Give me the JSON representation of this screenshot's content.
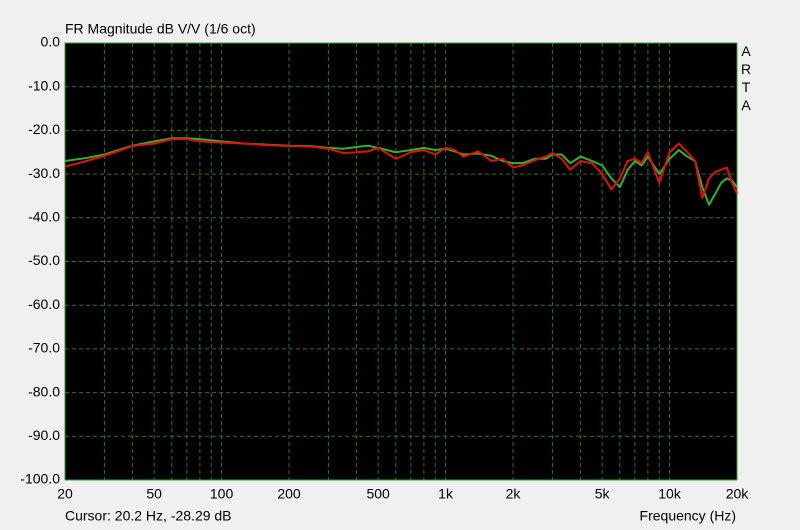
{
  "chart_data": {
    "type": "line",
    "title": "FR Magnitude dB V/V (1/6 oct)",
    "watermark": "ARTA",
    "cursor": "Cursor: 20.2 Hz, -28.29 dB",
    "x_label": "Frequency (Hz)",
    "x_log": true,
    "grid": true,
    "background": "#000000",
    "frame_color": "#3c9b3c",
    "grid_color": "#2f6f2f",
    "xlim": [
      20,
      20000
    ],
    "xticks": [
      20,
      50,
      100,
      200,
      500,
      {
        "value": 1000,
        "label": "1k"
      },
      {
        "value": 2000,
        "label": "2k"
      },
      {
        "value": 5000,
        "label": "5k"
      },
      {
        "value": 10000,
        "label": "10k"
      },
      {
        "value": 20000,
        "label": "20k"
      }
    ],
    "xminorticks": [
      30,
      40,
      60,
      70,
      80,
      90,
      300,
      400,
      600,
      700,
      800,
      900,
      3000,
      4000,
      6000,
      7000,
      8000,
      9000
    ],
    "ylim": [
      -100,
      0
    ],
    "yticks": [
      {
        "value": 0,
        "label": "0.0"
      },
      {
        "value": -10,
        "label": "-10.0"
      },
      {
        "value": -20,
        "label": "-20.0"
      },
      {
        "value": -30,
        "label": "-30.0"
      },
      {
        "value": -40,
        "label": "-40.0"
      },
      {
        "value": -50,
        "label": "-50.0"
      },
      {
        "value": -60,
        "label": "-60.0"
      },
      {
        "value": -70,
        "label": "-70.0"
      },
      {
        "value": -80,
        "label": "-80.0"
      },
      {
        "value": -90,
        "label": "-90.0"
      },
      {
        "value": -100,
        "label": "-100.0"
      }
    ],
    "x": [
      20,
      25,
      30,
      40,
      50,
      60,
      70,
      80,
      100,
      125,
      150,
      200,
      250,
      300,
      350,
      400,
      450,
      500,
      600,
      700,
      800,
      900,
      1000,
      1100,
      1200,
      1400,
      1600,
      1800,
      2000,
      2200,
      2500,
      2800,
      3000,
      3300,
      3600,
      4000,
      4500,
      5000,
      5500,
      6000,
      6500,
      7000,
      7500,
      8000,
      9000,
      10000,
      11000,
      12000,
      13000,
      14000,
      15000,
      16000,
      17000,
      18000,
      19000,
      20000
    ],
    "series": [
      {
        "color": "#2db52d",
        "values": [
          -27,
          -26.3,
          -25.5,
          -23.5,
          -22.5,
          -21.8,
          -21.8,
          -22,
          -22.5,
          -23,
          -23.2,
          -23.5,
          -23.6,
          -24,
          -24.2,
          -23.8,
          -23.5,
          -24,
          -25,
          -24.5,
          -24,
          -24.5,
          -24.2,
          -24.8,
          -25.5,
          -25.3,
          -25.8,
          -27,
          -27.5,
          -27.5,
          -26.5,
          -26.5,
          -25.5,
          -25.5,
          -27.5,
          -26,
          -27,
          -28,
          -31,
          -33,
          -29,
          -27,
          -28,
          -26,
          -30,
          -26.5,
          -24.5,
          -26,
          -27,
          -33,
          -37,
          -34.5,
          -32,
          -31,
          -31.5,
          -33
        ]
      },
      {
        "color": "#e01010",
        "values": [
          -28.3,
          -27,
          -25.8,
          -23.6,
          -23,
          -22,
          -22,
          -22.5,
          -22.8,
          -23,
          -23.3,
          -23.6,
          -23.7,
          -24.2,
          -25.2,
          -25,
          -24.8,
          -24,
          -26.5,
          -25,
          -24.5,
          -25.5,
          -24,
          -24.5,
          -26,
          -24.8,
          -27,
          -26.5,
          -28.5,
          -28,
          -26.8,
          -26,
          -25.2,
          -26.5,
          -29,
          -27,
          -27.5,
          -30,
          -33.5,
          -31,
          -27,
          -26.5,
          -27.5,
          -25,
          -32,
          -25,
          -23,
          -25,
          -27,
          -35.5,
          -31,
          -29.5,
          -29,
          -28.5,
          -32,
          -34.5
        ]
      }
    ]
  }
}
